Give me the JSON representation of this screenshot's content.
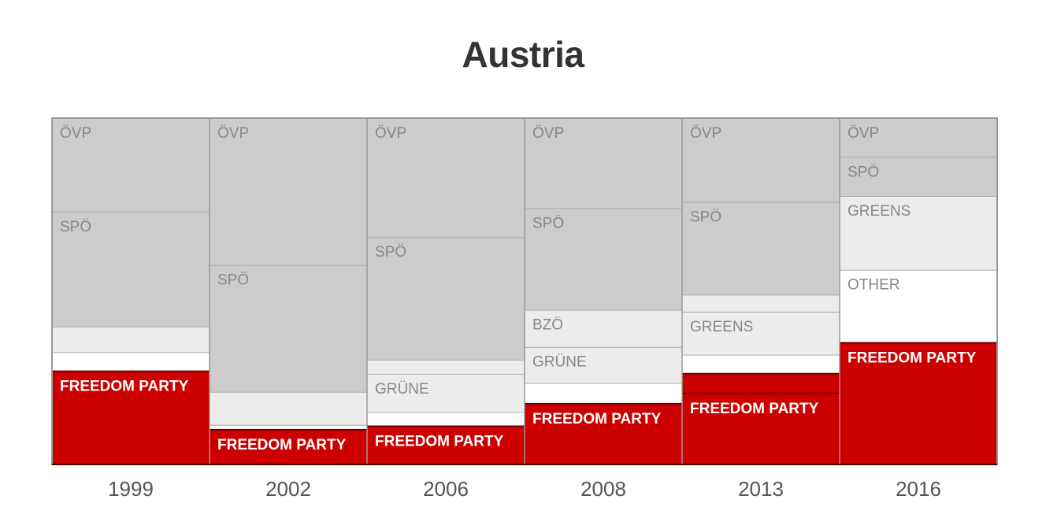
{
  "title": "Austria",
  "chart_data": {
    "type": "stacked-bar",
    "title": "Austria",
    "categories": [
      "1999",
      "2002",
      "2006",
      "2008",
      "2013",
      "2016"
    ],
    "unit": "share of vote (%)",
    "ylim": [
      0,
      100
    ],
    "stacks": [
      {
        "year": "1999",
        "segments": [
          {
            "party": "FREEDOM PARTY",
            "label": "FREEDOM PARTY",
            "value": 26.9,
            "kind": "freedom"
          },
          {
            "party": "",
            "label": "",
            "value": 5.5,
            "kind": "other"
          },
          {
            "party": "",
            "label": "",
            "value": 7.4,
            "kind": "minor"
          },
          {
            "party": "SPÖ",
            "label": "SPÖ",
            "value": 33.2,
            "kind": "major"
          },
          {
            "party": "ÖVP",
            "label": "ÖVP",
            "value": 27.0,
            "kind": "major"
          }
        ]
      },
      {
        "year": "2002",
        "segments": [
          {
            "party": "FREEDOM PARTY",
            "label": "FREEDOM PARTY",
            "value": 10.0,
            "kind": "freedom"
          },
          {
            "party": "",
            "label": "",
            "value": 1.4,
            "kind": "other"
          },
          {
            "party": "",
            "label": "",
            "value": 9.5,
            "kind": "minor"
          },
          {
            "party": "SPÖ",
            "label": "SPÖ",
            "value": 36.5,
            "kind": "major"
          },
          {
            "party": "ÖVP",
            "label": "ÖVP",
            "value": 42.3,
            "kind": "major"
          }
        ]
      },
      {
        "year": "2006",
        "segments": [
          {
            "party": "FREEDOM PARTY",
            "label": "FREEDOM PARTY",
            "value": 11.0,
            "kind": "freedom"
          },
          {
            "party": "",
            "label": "",
            "value": 4.1,
            "kind": "other"
          },
          {
            "party": "GRÜNE",
            "label": "GRÜNE",
            "value": 11.0,
            "kind": "minor"
          },
          {
            "party": "",
            "label": "",
            "value": 4.1,
            "kind": "minor"
          },
          {
            "party": "SPÖ",
            "label": "SPÖ",
            "value": 35.3,
            "kind": "major"
          },
          {
            "party": "ÖVP",
            "label": "ÖVP",
            "value": 34.3,
            "kind": "major"
          }
        ]
      },
      {
        "year": "2008",
        "segments": [
          {
            "party": "FREEDOM PARTY",
            "label": "FREEDOM PARTY",
            "value": 17.5,
            "kind": "freedom"
          },
          {
            "party": "",
            "label": "",
            "value": 6.0,
            "kind": "other"
          },
          {
            "party": "GRÜNE",
            "label": "GRÜNE",
            "value": 10.4,
            "kind": "minor"
          },
          {
            "party": "BZÖ",
            "label": "BZÖ",
            "value": 10.7,
            "kind": "minor"
          },
          {
            "party": "SPÖ",
            "label": "SPÖ",
            "value": 29.3,
            "kind": "major"
          },
          {
            "party": "ÖVP",
            "label": "ÖVP",
            "value": 26.0,
            "kind": "major"
          }
        ]
      },
      {
        "year": "2013",
        "segments": [
          {
            "party": "FREEDOM PARTY",
            "label": "FREEDOM PARTY",
            "value": 20.5,
            "kind": "freedom"
          },
          {
            "party": "",
            "label": "",
            "value": 5.7,
            "kind": "freedom"
          },
          {
            "party": "",
            "label": "",
            "value": 5.5,
            "kind": "other"
          },
          {
            "party": "GREENS",
            "label": "GREENS",
            "value": 12.4,
            "kind": "minor"
          },
          {
            "party": "",
            "label": "",
            "value": 4.9,
            "kind": "minor"
          },
          {
            "party": "SPÖ",
            "label": "SPÖ",
            "value": 26.8,
            "kind": "major"
          },
          {
            "party": "ÖVP",
            "label": "ÖVP",
            "value": 24.2,
            "kind": "major"
          }
        ]
      },
      {
        "year": "2016",
        "segments": [
          {
            "party": "FREEDOM PARTY",
            "label": "FREEDOM PARTY",
            "value": 35.1,
            "kind": "freedom"
          },
          {
            "party": "OTHER",
            "label": "OTHER",
            "value": 21.1,
            "kind": "other"
          },
          {
            "party": "GREENS",
            "label": "GREENS",
            "value": 21.3,
            "kind": "minor"
          },
          {
            "party": "SPÖ",
            "label": "SPÖ",
            "value": 11.3,
            "kind": "major"
          },
          {
            "party": "ÖVP",
            "label": "ÖVP",
            "value": 11.2,
            "kind": "major"
          }
        ]
      }
    ],
    "colors": {
      "freedom": "#cc0000",
      "major": "#cccccc",
      "minor": "#ececec",
      "other": "#ffffff",
      "separator": "#aaaaaa",
      "freedom_border": "#6b0000",
      "freedom_text": "#ffffff",
      "party_text": "#888888",
      "year_text": "#555555"
    }
  }
}
